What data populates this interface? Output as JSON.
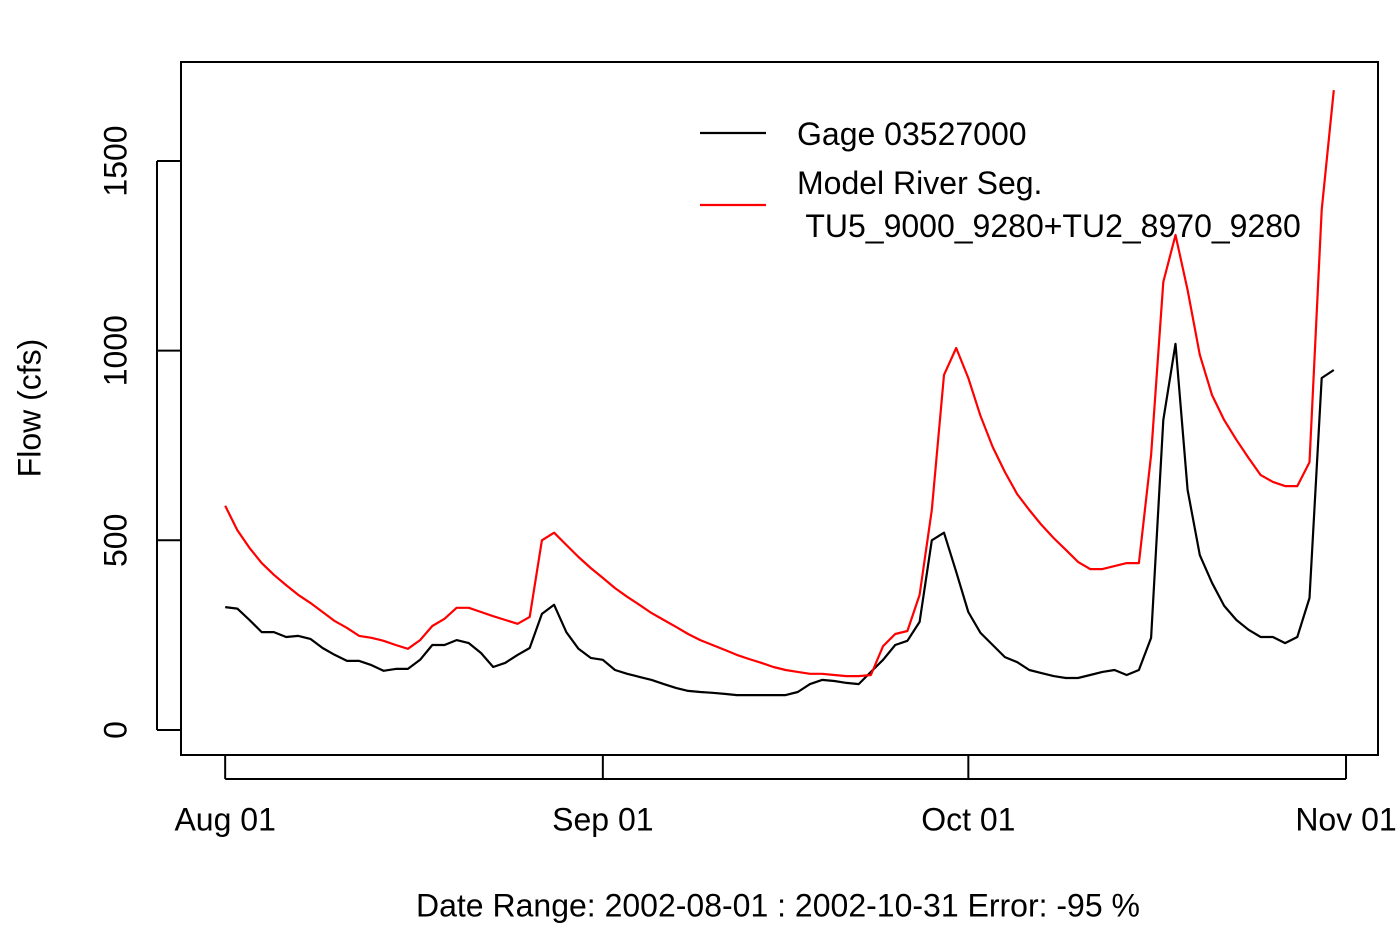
{
  "chart_data": {
    "type": "line",
    "xlabel": "Date Range: 2002-08-01 : 2002-10-31   Error: -95 %",
    "ylabel": "Flow (cfs)",
    "x": [
      "2002-08-01",
      "2002-08-02",
      "2002-08-03",
      "2002-08-04",
      "2002-08-05",
      "2002-08-06",
      "2002-08-07",
      "2002-08-08",
      "2002-08-09",
      "2002-08-10",
      "2002-08-11",
      "2002-08-12",
      "2002-08-13",
      "2002-08-14",
      "2002-08-15",
      "2002-08-16",
      "2002-08-17",
      "2002-08-18",
      "2002-08-19",
      "2002-08-20",
      "2002-08-21",
      "2002-08-22",
      "2002-08-23",
      "2002-08-24",
      "2002-08-25",
      "2002-08-26",
      "2002-08-27",
      "2002-08-28",
      "2002-08-29",
      "2002-08-30",
      "2002-08-31",
      "2002-09-01",
      "2002-09-02",
      "2002-09-03",
      "2002-09-04",
      "2002-09-05",
      "2002-09-06",
      "2002-09-07",
      "2002-09-08",
      "2002-09-09",
      "2002-09-10",
      "2002-09-11",
      "2002-09-12",
      "2002-09-13",
      "2002-09-14",
      "2002-09-15",
      "2002-09-16",
      "2002-09-17",
      "2002-09-18",
      "2002-09-19",
      "2002-09-20",
      "2002-09-21",
      "2002-09-22",
      "2002-09-23",
      "2002-09-24",
      "2002-09-25",
      "2002-09-26",
      "2002-09-27",
      "2002-09-28",
      "2002-09-29",
      "2002-09-30",
      "2002-10-01",
      "2002-10-02",
      "2002-10-03",
      "2002-10-04",
      "2002-10-05",
      "2002-10-06",
      "2002-10-07",
      "2002-10-08",
      "2002-10-09",
      "2002-10-10",
      "2002-10-11",
      "2002-10-12",
      "2002-10-13",
      "2002-10-14",
      "2002-10-15",
      "2002-10-16",
      "2002-10-17",
      "2002-10-18",
      "2002-10-19",
      "2002-10-20",
      "2002-10-21",
      "2002-10-22",
      "2002-10-23",
      "2002-10-24",
      "2002-10-25",
      "2002-10-26",
      "2002-10-27",
      "2002-10-28",
      "2002-10-29",
      "2002-10-30",
      "2002-10-31"
    ],
    "series": [
      {
        "name": "Gage 03527000",
        "color": "#000000",
        "values": [
          324,
          320,
          290,
          258,
          258,
          245,
          248,
          240,
          216,
          198,
          182,
          182,
          171,
          156,
          161,
          161,
          185,
          224,
          224,
          237,
          229,
          203,
          166,
          177,
          198,
          216,
          306,
          330,
          258,
          214,
          190,
          185,
          158,
          148,
          140,
          132,
          121,
          111,
          103,
          100,
          98,
          95,
          92,
          92,
          92,
          92,
          92,
          100,
          121,
          132,
          129,
          124,
          121,
          153,
          185,
          224,
          235,
          285,
          500,
          520,
          417,
          311,
          256,
          224,
          192,
          179,
          158,
          150,
          142,
          137,
          137,
          145,
          153,
          158,
          145,
          158,
          243,
          817,
          1018,
          633,
          461,
          388,
          327,
          290,
          264,
          245,
          245,
          229,
          245,
          348,
          928,
          949
        ]
      },
      {
        "name": "Model River Seg.\n TU5_9000_9280+TU2_8970_9280",
        "color": "#ff0000",
        "values": [
          591,
          527,
          480,
          440,
          409,
          382,
          356,
          335,
          311,
          287,
          269,
          248,
          243,
          235,
          224,
          214,
          237,
          274,
          293,
          322,
          322,
          311,
          300,
          290,
          280,
          298,
          500,
          520,
          488,
          456,
          427,
          401,
          374,
          351,
          330,
          308,
          290,
          272,
          253,
          237,
          224,
          211,
          198,
          187,
          177,
          166,
          158,
          153,
          148,
          148,
          145,
          142,
          142,
          145,
          221,
          253,
          261,
          356,
          580,
          936,
          1007,
          928,
          828,
          746,
          680,
          622,
          580,
          541,
          506,
          475,
          443,
          424,
          424,
          432,
          440,
          440,
          725,
          1181,
          1305,
          1160,
          989,
          883,
          817,
          765,
          717,
          672,
          654,
          643,
          643,
          706,
          1371,
          1687
        ]
      }
    ],
    "xlim": [
      "2002-07-28T09:00",
      "2002-11-03T15:00"
    ],
    "xticks": [
      {
        "value": "2002-08-01",
        "label": "Aug 01"
      },
      {
        "value": "2002-09-01",
        "label": "Sep 01"
      },
      {
        "value": "2002-10-01",
        "label": "Oct 01"
      },
      {
        "value": "2002-11-01",
        "label": "Nov 01"
      }
    ],
    "ylim": [
      -66,
      1761
    ],
    "yticks": [
      0,
      500,
      1000,
      1500
    ],
    "legend": "top-right"
  }
}
